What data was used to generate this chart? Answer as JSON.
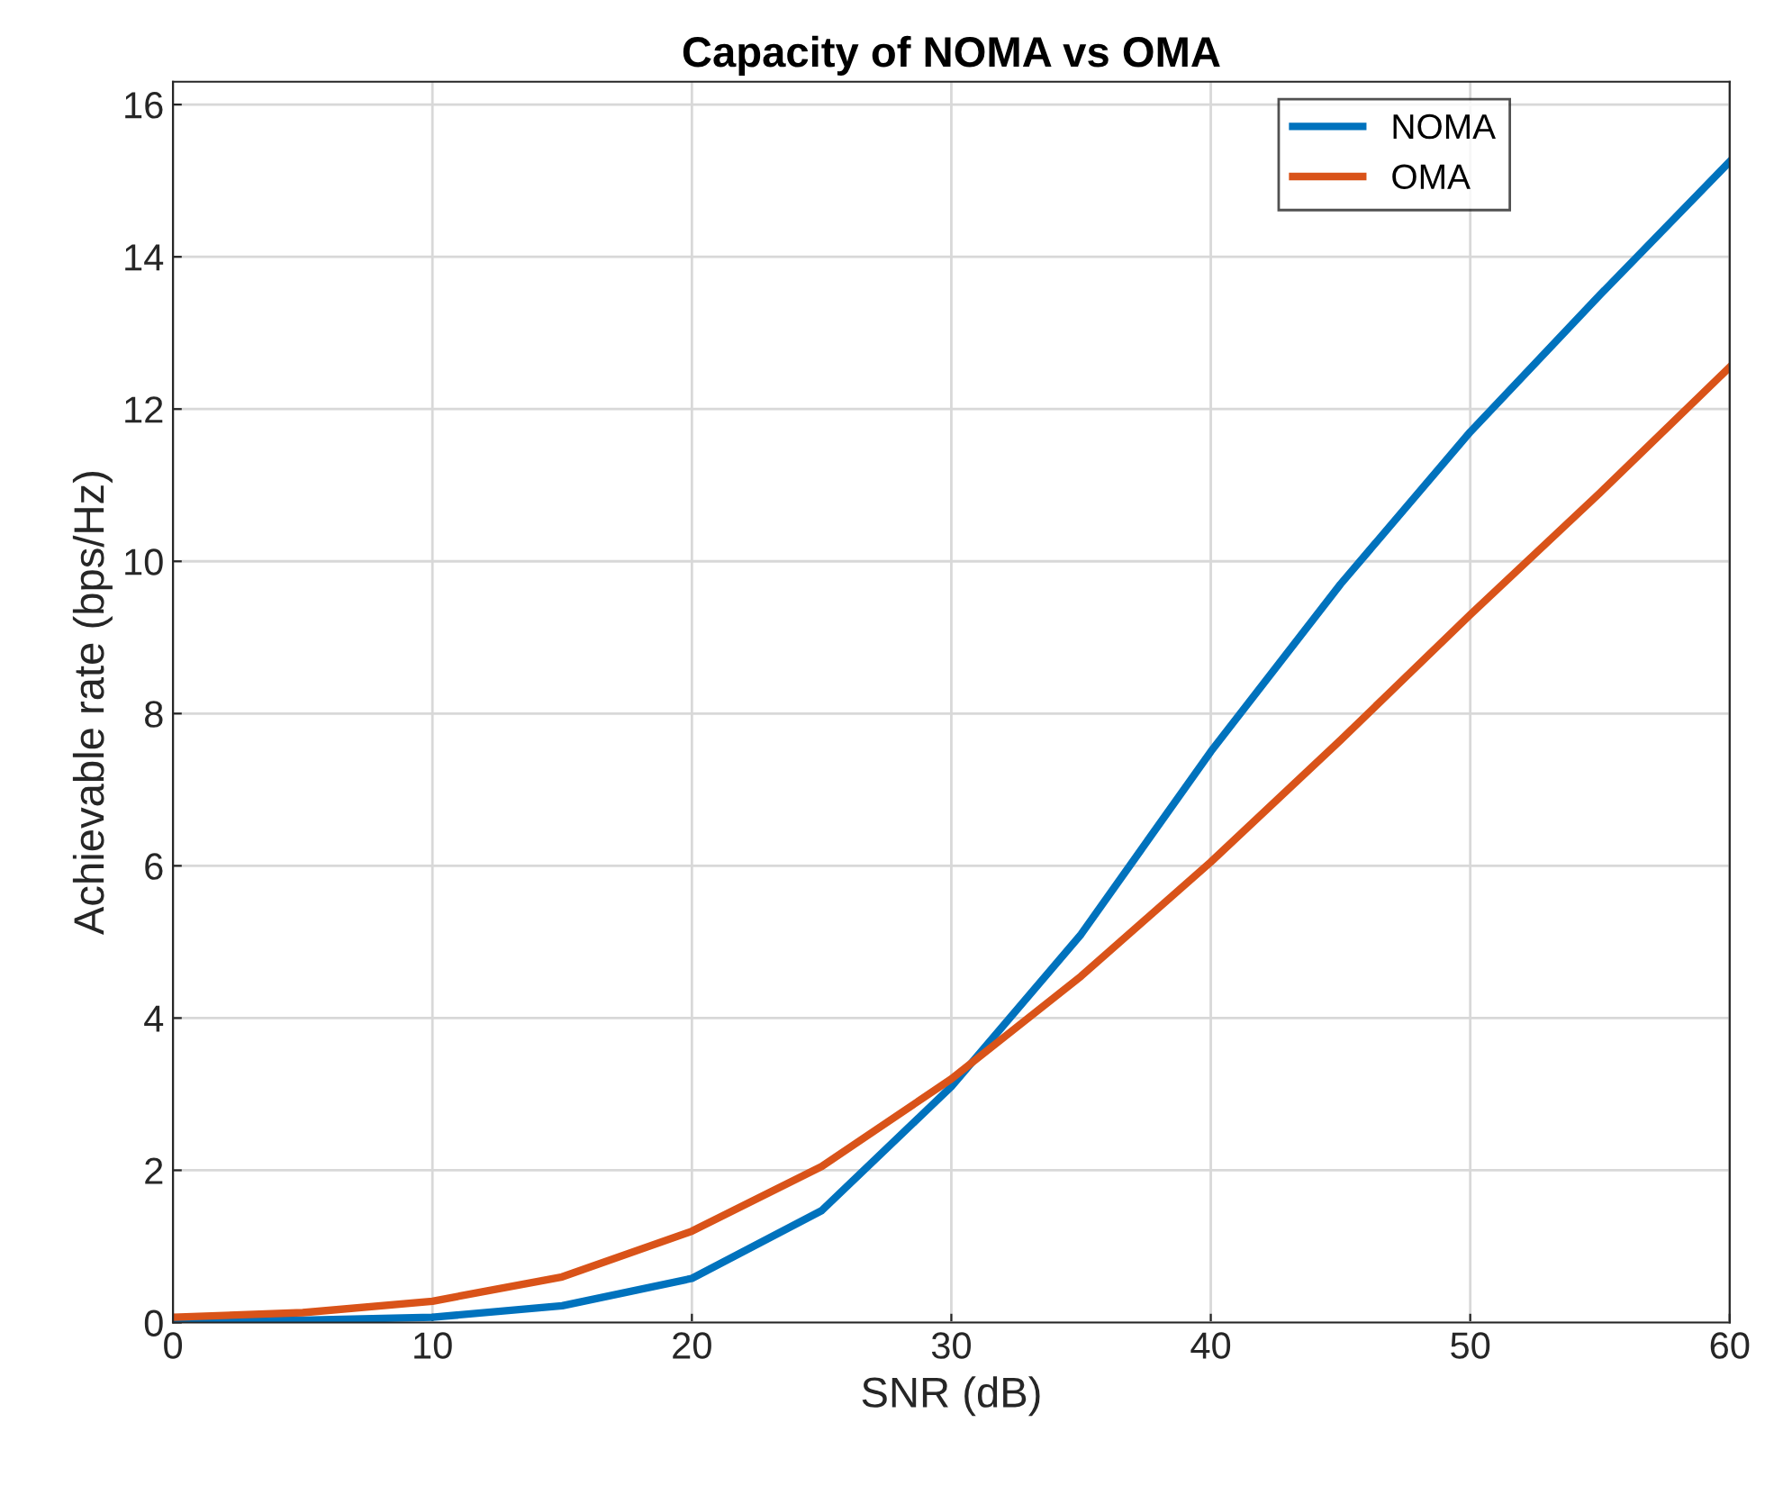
{
  "chart_data": {
    "type": "line",
    "title": "Capacity of NOMA vs OMA",
    "xlabel": "SNR (dB)",
    "ylabel": "Achievable rate (bps/Hz)",
    "x": [
      0,
      5,
      10,
      15,
      20,
      25,
      30,
      35,
      40,
      45,
      50,
      55,
      60
    ],
    "series": [
      {
        "name": "NOMA",
        "color": "#0072bd",
        "values": [
          0.02,
          0.03,
          0.07,
          0.22,
          0.58,
          1.47,
          3.1,
          5.1,
          7.5,
          9.7,
          11.7,
          13.5,
          15.25
        ]
      },
      {
        "name": "OMA",
        "color": "#d95319",
        "values": [
          0.07,
          0.13,
          0.28,
          0.6,
          1.2,
          2.05,
          3.2,
          4.55,
          6.05,
          7.65,
          9.3,
          10.9,
          12.55
        ]
      }
    ],
    "xlim": [
      0,
      60
    ],
    "ylim": [
      0,
      16.3
    ],
    "xticks": [
      0,
      10,
      20,
      30,
      40,
      50,
      60
    ],
    "yticks": [
      0,
      2,
      4,
      6,
      8,
      10,
      12,
      14,
      16
    ],
    "grid": true,
    "legend": "top right",
    "marker": "none",
    "line_style": "solid"
  }
}
